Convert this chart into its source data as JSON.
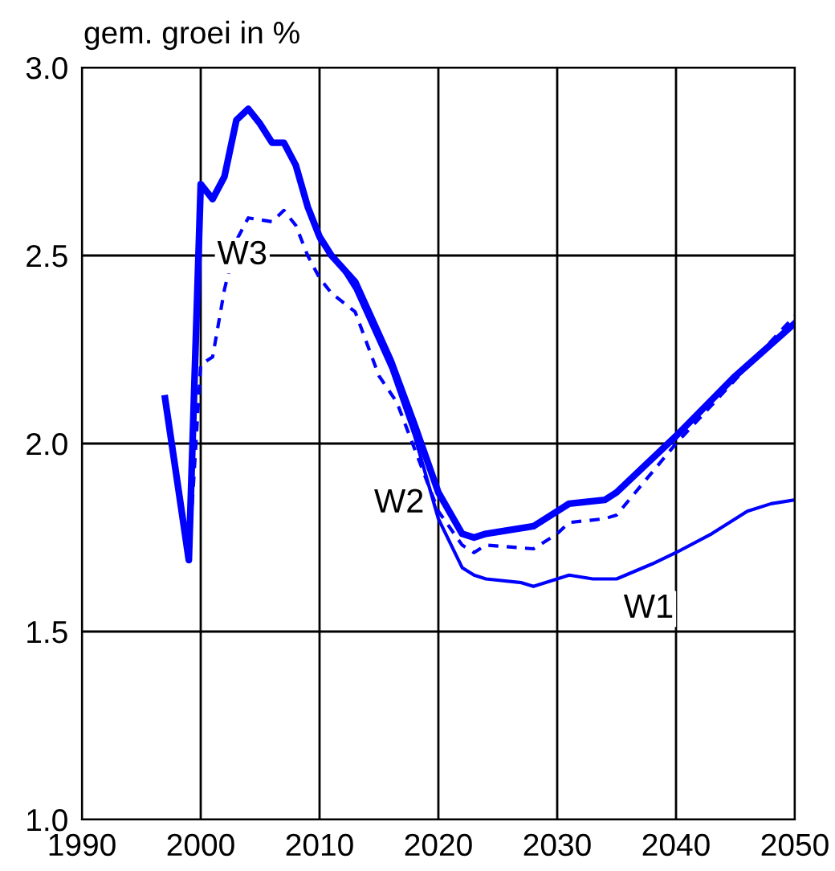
{
  "chart_data": {
    "type": "line",
    "ylabel": "gem. groei in %",
    "xlim": [
      1990,
      2050
    ],
    "xticks": [
      1990,
      2000,
      2010,
      2020,
      2030,
      2040,
      2050
    ],
    "ylim": [
      1.0,
      3.0
    ],
    "yticks": [
      {
        "value": 1.0,
        "label": "1.0"
      },
      {
        "value": 1.5,
        "label": "1.5"
      },
      {
        "value": 2.0,
        "label": "2.0"
      },
      {
        "value": 2.5,
        "label": "2.5"
      },
      {
        "value": 3.0,
        "label": "3.0"
      }
    ],
    "grid": true,
    "legend": false,
    "series": [
      {
        "name": "W1",
        "color": "#0000ff",
        "line_style": "solid",
        "x": [
          1997,
          1999,
          2000,
          2001,
          2002,
          2003,
          2004,
          2005,
          2006,
          2007,
          2008,
          2009,
          2010,
          2012,
          2013,
          2016,
          2018,
          2020,
          2022,
          2023,
          2024,
          2027,
          2028,
          2030,
          2031,
          2033,
          2035,
          2038,
          2040,
          2043,
          2046,
          2048,
          2050
        ],
        "values": [
          2.12,
          1.69,
          2.69,
          2.65,
          2.71,
          2.86,
          2.89,
          2.85,
          2.8,
          2.8,
          2.74,
          2.63,
          2.54,
          2.46,
          2.41,
          2.2,
          2.02,
          1.8,
          1.67,
          1.65,
          1.64,
          1.63,
          1.62,
          1.64,
          1.65,
          1.64,
          1.64,
          1.68,
          1.71,
          1.76,
          1.82,
          1.84,
          1.85
        ]
      },
      {
        "name": "W2",
        "color": "#0000ff",
        "line_style": "solid",
        "x": [
          1997,
          1999,
          2000,
          2001,
          2002,
          2003,
          2004,
          2005,
          2006,
          2007,
          2008,
          2009,
          2010,
          2011,
          2013,
          2016,
          2018,
          2020,
          2022,
          2023,
          2024,
          2028,
          2030,
          2031,
          2034,
          2035,
          2040,
          2045,
          2050
        ],
        "values": [
          2.12,
          1.69,
          2.69,
          2.65,
          2.71,
          2.86,
          2.89,
          2.85,
          2.8,
          2.8,
          2.74,
          2.63,
          2.55,
          2.5,
          2.43,
          2.22,
          2.05,
          1.87,
          1.76,
          1.75,
          1.76,
          1.78,
          1.82,
          1.84,
          1.85,
          1.87,
          2.02,
          2.18,
          2.32
        ]
      },
      {
        "name": "W3",
        "color": "#0000ff",
        "line_style": "dashed",
        "x": [
          1999,
          2000,
          2001,
          2002,
          2003,
          2004,
          2006,
          2007,
          2008,
          2009,
          2010,
          2011,
          2013,
          2015,
          2016.5,
          2020,
          2022,
          2023,
          2024,
          2028,
          2030,
          2031,
          2034,
          2035,
          2040,
          2045,
          2050
        ],
        "values": [
          1.69,
          2.21,
          2.23,
          2.41,
          2.54,
          2.6,
          2.59,
          2.62,
          2.58,
          2.5,
          2.44,
          2.4,
          2.35,
          2.18,
          2.11,
          1.82,
          1.73,
          1.71,
          1.73,
          1.72,
          1.76,
          1.79,
          1.8,
          1.81,
          2.0,
          2.17,
          2.34
        ]
      }
    ]
  }
}
